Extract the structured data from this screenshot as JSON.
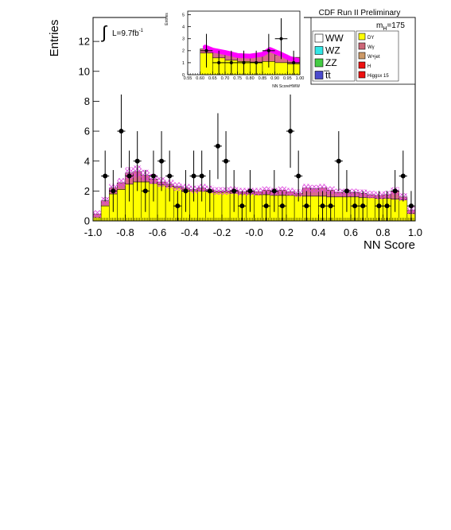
{
  "chart_data": [
    {
      "type": "histogram",
      "ylabel": "Entries",
      "xlabel": "NN Score",
      "xlim": [
        -1.0,
        1.0
      ],
      "ylim": [
        0,
        13.6
      ],
      "x_ticks": [
        "-1.0",
        "-0.8",
        "-0.6",
        "-0.4",
        "-0.2",
        "-0.0",
        "0.2",
        "0.4",
        "0.6",
        "0.8",
        "1.0"
      ],
      "y_ticks": [
        "0",
        "2",
        "4",
        "6",
        "8",
        "10",
        "12"
      ],
      "luminosity": {
        "prefix": "L=9.7fb",
        "sup": "-1"
      },
      "bin_width": 0.05,
      "bin_edges_start": -1.0,
      "yellow_stack": [
        0.25,
        1.0,
        1.8,
        2.1,
        2.45,
        2.6,
        2.6,
        2.5,
        2.4,
        2.3,
        2.2,
        2.1,
        2.0,
        2.0,
        1.95,
        1.9,
        1.9,
        1.85,
        1.8,
        1.8,
        1.75,
        1.75,
        1.7,
        1.7,
        1.7,
        1.7,
        1.65,
        1.65,
        1.65,
        1.6,
        1.6,
        1.6,
        1.6,
        1.55,
        1.55,
        1.5,
        1.5,
        1.45,
        1.4,
        0.5
      ],
      "total_stack": [
        0.45,
        1.35,
        2.2,
        2.55,
        3.2,
        3.3,
        3.05,
        2.8,
        2.6,
        2.45,
        2.3,
        2.2,
        2.1,
        2.2,
        2.1,
        2.0,
        2.0,
        2.05,
        1.95,
        1.95,
        1.95,
        2.05,
        1.95,
        2.05,
        1.95,
        1.85,
        2.2,
        2.15,
        2.2,
        2.05,
        1.9,
        1.9,
        1.9,
        1.85,
        1.75,
        1.7,
        1.75,
        2.0,
        1.6,
        0.7
      ],
      "data_points": [
        {
          "x": -0.925,
          "y": 3,
          "err": 1.7
        },
        {
          "x": -0.875,
          "y": 2,
          "err": 1.4
        },
        {
          "x": -0.825,
          "y": 6,
          "err": 2.45
        },
        {
          "x": -0.775,
          "y": 3,
          "err": 1.7
        },
        {
          "x": -0.725,
          "y": 4,
          "err": 2.0
        },
        {
          "x": -0.675,
          "y": 2,
          "err": 1.4
        },
        {
          "x": -0.625,
          "y": 3,
          "err": 1.7
        },
        {
          "x": -0.575,
          "y": 4,
          "err": 2.0
        },
        {
          "x": -0.525,
          "y": 3,
          "err": 1.7
        },
        {
          "x": -0.475,
          "y": 1,
          "err": 1.0
        },
        {
          "x": -0.425,
          "y": 2,
          "err": 1.4
        },
        {
          "x": -0.375,
          "y": 3,
          "err": 1.7
        },
        {
          "x": -0.325,
          "y": 3,
          "err": 1.7
        },
        {
          "x": -0.275,
          "y": 2,
          "err": 1.4
        },
        {
          "x": -0.225,
          "y": 5,
          "err": 2.2
        },
        {
          "x": -0.175,
          "y": 4,
          "err": 2.0
        },
        {
          "x": -0.125,
          "y": 2,
          "err": 1.4
        },
        {
          "x": -0.075,
          "y": 1,
          "err": 1.0
        },
        {
          "x": -0.025,
          "y": 2,
          "err": 1.4
        },
        {
          "x": 0.075,
          "y": 1,
          "err": 1.0
        },
        {
          "x": 0.125,
          "y": 2,
          "err": 1.4
        },
        {
          "x": 0.175,
          "y": 1,
          "err": 1.0
        },
        {
          "x": 0.225,
          "y": 6,
          "err": 2.45
        },
        {
          "x": 0.275,
          "y": 3,
          "err": 1.7
        },
        {
          "x": 0.325,
          "y": 1,
          "err": 1.0
        },
        {
          "x": 0.425,
          "y": 1,
          "err": 1.0
        },
        {
          "x": 0.475,
          "y": 1,
          "err": 1.0
        },
        {
          "x": 0.525,
          "y": 4,
          "err": 2.0
        },
        {
          "x": 0.575,
          "y": 2,
          "err": 1.4
        },
        {
          "x": 0.625,
          "y": 1,
          "err": 1.0
        },
        {
          "x": 0.675,
          "y": 1,
          "err": 1.0
        },
        {
          "x": 0.775,
          "y": 1,
          "err": 1.0
        },
        {
          "x": 0.825,
          "y": 1,
          "err": 1.0
        },
        {
          "x": 0.875,
          "y": 2,
          "err": 1.4
        },
        {
          "x": 0.925,
          "y": 3,
          "err": 1.7
        },
        {
          "x": 0.975,
          "y": 1,
          "err": 1.0
        }
      ]
    },
    {
      "type": "histogram",
      "ylabel": "Entries",
      "xlabel": "NN ScoreHWW",
      "xlim": [
        0.55,
        1.0
      ],
      "ylim": [
        0,
        5.3
      ],
      "x_ticks": [
        "0.55",
        "0.60",
        "0.65",
        "0.70",
        "0.75",
        "0.80",
        "0.85",
        "0.90",
        "0.95",
        "1.00"
      ],
      "y_ticks": [
        "0",
        "1",
        "2",
        "3",
        "4",
        "5"
      ],
      "bin_width": 0.05,
      "bin_edges_start": 0.55,
      "yellow_stack": [
        0,
        1.8,
        1.4,
        1.2,
        1.1,
        1.05,
        1.1,
        1.0,
        0.9
      ],
      "total_stack": [
        0,
        2.15,
        1.85,
        1.75,
        1.7,
        1.7,
        1.9,
        1.65,
        1.45
      ],
      "signal_curve": [
        {
          "x": 0.62,
          "y": 2.3
        },
        {
          "x": 0.65,
          "y": 2.05
        },
        {
          "x": 0.7,
          "y": 1.85
        },
        {
          "x": 0.75,
          "y": 1.6
        },
        {
          "x": 0.8,
          "y": 1.55
        },
        {
          "x": 0.85,
          "y": 1.7
        },
        {
          "x": 0.88,
          "y": 2.1
        },
        {
          "x": 0.92,
          "y": 1.75
        },
        {
          "x": 0.96,
          "y": 1.35
        },
        {
          "x": 0.99,
          "y": 1.2
        }
      ],
      "data_points": [
        {
          "x": 0.625,
          "y": 2,
          "err": 1.4
        },
        {
          "x": 0.675,
          "y": 1,
          "err": 1.0
        },
        {
          "x": 0.725,
          "y": 1,
          "err": 1.0
        },
        {
          "x": 0.775,
          "y": 1,
          "err": 1.0
        },
        {
          "x": 0.825,
          "y": 1,
          "err": 1.0
        },
        {
          "x": 0.875,
          "y": 2,
          "err": 1.4
        },
        {
          "x": 0.925,
          "y": 3,
          "err": 1.7
        },
        {
          "x": 0.975,
          "y": 1,
          "err": 1.0
        }
      ]
    }
  ],
  "header": {
    "title": "CDF Run II Preliminary",
    "mass_label": "m",
    "mass_sub": "H",
    "mass_value": "=175"
  },
  "legend": {
    "left": [
      {
        "label": "WW",
        "color": "#ffffff"
      },
      {
        "label": "WZ",
        "color": "#33e6e6"
      },
      {
        "label": "ZZ",
        "color": "#44cc44"
      },
      {
        "label": "t̅t",
        "color": "#4a4acc"
      }
    ],
    "right": [
      {
        "label": "DY",
        "color": "#ffff00"
      },
      {
        "label": "Wγ",
        "color": "#cc6677"
      },
      {
        "label": "W+jet",
        "color": "#cc9966"
      },
      {
        "label": "H",
        "color": "#ee1111"
      },
      {
        "label": "Higgsx 15",
        "color": "#ee1111"
      }
    ]
  },
  "colors": {
    "yellow": "#ffff00",
    "pink": "#d96b8a",
    "hatch": "#dd44dd",
    "signal": "#ff00ff",
    "frame": "#000000"
  }
}
